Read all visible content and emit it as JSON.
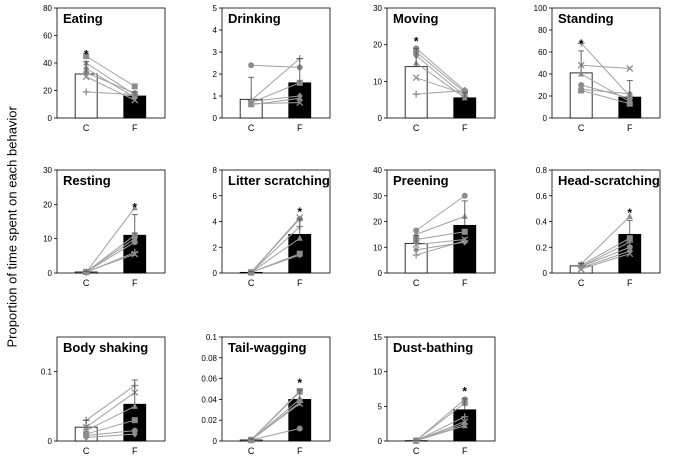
{
  "figure": {
    "ylabel": "Proportion of time spent on each behavior"
  },
  "style": {
    "line_color": "#a0a0a0",
    "marker_color": "#8c8c8c",
    "bar_c_fill": "#ffffff",
    "bar_f_fill": "#000000"
  },
  "chart_data": [
    {
      "type": "bar",
      "title": "Eating",
      "categories": [
        "C",
        "F"
      ],
      "ylim": [
        0,
        80
      ],
      "yticks": [
        0,
        20,
        40,
        60,
        80
      ],
      "values": [
        32,
        16
      ],
      "errors": [
        9,
        3
      ],
      "significant": [
        true,
        false
      ],
      "individuals": [
        [
          45,
          23
        ],
        [
          40,
          17
        ],
        [
          36,
          15
        ],
        [
          33,
          18
        ],
        [
          30,
          13
        ],
        [
          19,
          17
        ]
      ],
      "markers": [
        "square",
        "triangle",
        "diamond",
        "circle",
        "x",
        "plus"
      ]
    },
    {
      "type": "bar",
      "title": "Drinking",
      "categories": [
        "C",
        "F"
      ],
      "ylim": [
        0,
        5
      ],
      "yticks": [
        0,
        1,
        2,
        3,
        4,
        5
      ],
      "values": [
        0.85,
        1.6
      ],
      "errors": [
        1.0,
        1.1
      ],
      "significant": [
        false,
        false
      ],
      "individuals": [
        [
          2.4,
          2.3
        ],
        [
          0.8,
          2.7
        ],
        [
          0.7,
          1.6
        ],
        [
          0.6,
          0.9
        ],
        [
          0.65,
          0.7
        ],
        [
          0.75,
          1.0
        ]
      ],
      "markers": [
        "circle",
        "plus",
        "square",
        "triangle",
        "x",
        "diamond"
      ]
    },
    {
      "type": "bar",
      "title": "Moving",
      "categories": [
        "C",
        "F"
      ],
      "ylim": [
        0,
        30
      ],
      "yticks": [
        0,
        10,
        20,
        30
      ],
      "values": [
        14,
        5.5
      ],
      "errors": [
        5,
        1.5
      ],
      "significant": [
        true,
        false
      ],
      "individuals": [
        [
          19,
          7.5
        ],
        [
          18,
          7
        ],
        [
          17,
          6
        ],
        [
          15,
          5.5
        ],
        [
          11,
          6.5
        ],
        [
          6.5,
          7.5
        ]
      ],
      "markers": [
        "circle",
        "square",
        "diamond",
        "triangle",
        "x",
        "plus"
      ]
    },
    {
      "type": "bar",
      "title": "Standing",
      "categories": [
        "C",
        "F"
      ],
      "ylim": [
        0,
        100
      ],
      "yticks": [
        0,
        20,
        40,
        60,
        80,
        100
      ],
      "values": [
        41,
        19
      ],
      "errors": [
        20,
        15
      ],
      "significant": [
        true,
        false
      ],
      "individuals": [
        [
          68,
          20
        ],
        [
          48,
          45
        ],
        [
          40,
          15
        ],
        [
          30,
          18
        ],
        [
          26,
          22
        ],
        [
          25,
          13
        ]
      ],
      "markers": [
        "plus",
        "x",
        "triangle",
        "circle",
        "diamond",
        "square"
      ]
    },
    {
      "type": "bar",
      "title": "Resting",
      "categories": [
        "C",
        "F"
      ],
      "ylim": [
        0,
        30
      ],
      "yticks": [
        0,
        10,
        20,
        30
      ],
      "values": [
        0.3,
        11
      ],
      "errors": [
        0.2,
        6
      ],
      "significant": [
        false,
        true
      ],
      "individuals": [
        [
          0.2,
          19
        ],
        [
          0.3,
          11
        ],
        [
          0.4,
          10
        ],
        [
          0.3,
          9
        ],
        [
          0.2,
          6
        ],
        [
          0.3,
          5.5
        ]
      ],
      "markers": [
        "triangle",
        "square",
        "diamond",
        "circle",
        "plus",
        "x"
      ]
    },
    {
      "type": "bar",
      "title": "Litter scratching",
      "categories": [
        "C",
        "F"
      ],
      "ylim": [
        0,
        8
      ],
      "yticks": [
        0,
        2,
        4,
        6,
        8
      ],
      "values": [
        0.05,
        3
      ],
      "errors": [
        0.05,
        1.2
      ],
      "significant": [
        false,
        true
      ],
      "individuals": [
        [
          0.05,
          4.3
        ],
        [
          0.05,
          4.2
        ],
        [
          0.05,
          3.6
        ],
        [
          0.05,
          2.7
        ],
        [
          0.05,
          1.5
        ],
        [
          0.05,
          1.4
        ]
      ],
      "markers": [
        "x",
        "circle",
        "plus",
        "triangle",
        "square",
        "diamond"
      ]
    },
    {
      "type": "bar",
      "title": "Preening",
      "categories": [
        "C",
        "F"
      ],
      "ylim": [
        0,
        40
      ],
      "yticks": [
        0,
        10,
        20,
        30,
        40
      ],
      "values": [
        11.5,
        18.5
      ],
      "errors": [
        3,
        9.5
      ],
      "significant": [
        false,
        false
      ],
      "individuals": [
        [
          16.5,
          30
        ],
        [
          15,
          22
        ],
        [
          13,
          16
        ],
        [
          11,
          13
        ],
        [
          9,
          12
        ],
        [
          7,
          12.5
        ]
      ],
      "markers": [
        "circle",
        "triangle",
        "square",
        "x",
        "diamond",
        "plus"
      ]
    },
    {
      "type": "bar",
      "title": "Head-scratching",
      "categories": [
        "C",
        "F"
      ],
      "ylim": [
        0,
        0.8
      ],
      "yticks": [
        0,
        0.2,
        0.4,
        0.6,
        0.8
      ],
      "values": [
        0.055,
        0.3
      ],
      "errors": [
        0.02,
        0.11
      ],
      "significant": [
        false,
        true
      ],
      "individuals": [
        [
          0.07,
          0.44
        ],
        [
          0.06,
          0.27
        ],
        [
          0.05,
          0.24
        ],
        [
          0.05,
          0.2
        ],
        [
          0.04,
          0.17
        ],
        [
          0.03,
          0.15
        ]
      ],
      "markers": [
        "triangle",
        "square",
        "plus",
        "circle",
        "diamond",
        "x"
      ]
    },
    {
      "type": "bar",
      "title": "Body shaking",
      "categories": [
        "C",
        "F"
      ],
      "ylim": [
        0,
        0.15
      ],
      "yticks": [
        0,
        0.1
      ],
      "values": [
        0.02,
        0.053
      ],
      "errors": [
        0.01,
        0.035
      ],
      "significant": [
        false,
        false
      ],
      "individuals": [
        [
          0.03,
          0.08
        ],
        [
          0.02,
          0.07
        ],
        [
          0.015,
          0.05
        ],
        [
          0.01,
          0.03
        ],
        [
          0.008,
          0.015
        ],
        [
          0.005,
          0.01
        ]
      ],
      "markers": [
        "plus",
        "x",
        "triangle",
        "square",
        "circle",
        "diamond"
      ]
    },
    {
      "type": "bar",
      "title": "Tail-wagging",
      "categories": [
        "C",
        "F"
      ],
      "ylim": [
        0,
        0.1
      ],
      "yticks": [
        0,
        0.02,
        0.04,
        0.06,
        0.08,
        0.1
      ],
      "values": [
        0.001,
        0.04
      ],
      "errors": [
        0.001,
        0.009
      ],
      "significant": [
        false,
        true
      ],
      "individuals": [
        [
          0.001,
          0.048
        ],
        [
          0.001,
          0.047
        ],
        [
          0.001,
          0.04
        ],
        [
          0.001,
          0.037
        ],
        [
          0.001,
          0.036
        ],
        [
          0.001,
          0.012
        ]
      ],
      "markers": [
        "square",
        "triangle",
        "diamond",
        "plus",
        "x",
        "circle"
      ]
    },
    {
      "type": "bar",
      "title": "Dust-bathing",
      "categories": [
        "C",
        "F"
      ],
      "ylim": [
        0,
        15
      ],
      "yticks": [
        0,
        5,
        10,
        15
      ],
      "values": [
        0.05,
        4.5
      ],
      "errors": [
        0.05,
        1.6
      ],
      "significant": [
        false,
        true
      ],
      "individuals": [
        [
          0.05,
          6
        ],
        [
          0.05,
          5.5
        ],
        [
          0.05,
          3.5
        ],
        [
          0.05,
          2.8
        ],
        [
          0.05,
          2.2
        ],
        [
          0.05,
          2.5
        ]
      ],
      "markers": [
        "circle",
        "square",
        "plus",
        "x",
        "triangle",
        "diamond"
      ]
    }
  ]
}
